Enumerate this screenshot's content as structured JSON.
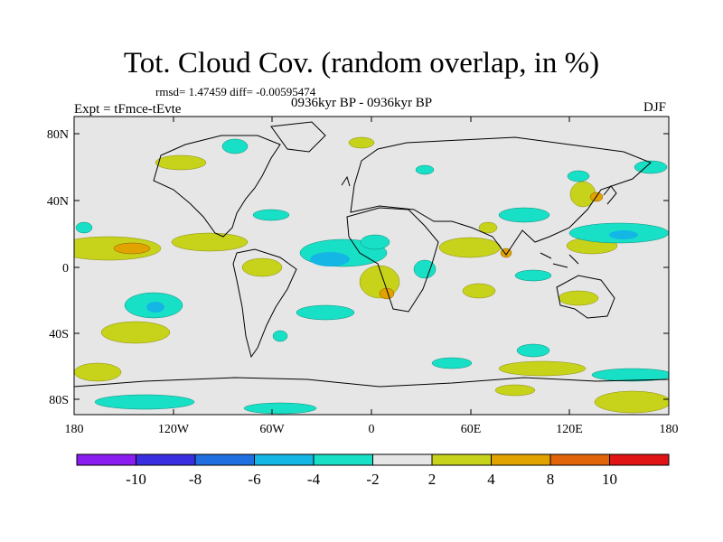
{
  "header": {
    "title": "Tot. Cloud Cov. (random overlap, in %)",
    "stats": "rmsd= 1.47459 diff= -0.00595474",
    "period": "0936kyr BP - 0936kyr BP",
    "experiment": "Expt = tFmce-tEvte",
    "season": "DJF"
  },
  "axes": {
    "lat_labels": [
      "80N",
      "40N",
      "0",
      "40S",
      "80S"
    ],
    "lon_labels": [
      "180",
      "120W",
      "60W",
      "0",
      "60E",
      "120E",
      "180"
    ]
  },
  "colorbar": {
    "labels": [
      "-10",
      "-8",
      "-6",
      "-4",
      "-2",
      "2",
      "4",
      "8",
      "10"
    ],
    "colors": [
      "#8a1ef0",
      "#3a2fe0",
      "#1f6fe0",
      "#14b6e6",
      "#18e0c6",
      "#e6e6e6",
      "#c7d21a",
      "#e1a300",
      "#e2640a",
      "#e01414"
    ]
  },
  "map": {
    "background_color": "#e6e6e6",
    "projection": "cylindrical equidistant"
  }
}
